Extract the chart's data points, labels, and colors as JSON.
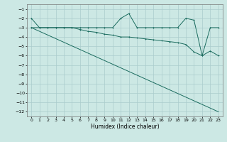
{
  "xlabel": "Humidex (Indice chaleur)",
  "ylabel": "",
  "xlim": [
    -0.5,
    23.5
  ],
  "ylim": [
    -12.5,
    -0.5
  ],
  "yticks": [
    -12,
    -11,
    -10,
    -9,
    -8,
    -7,
    -6,
    -5,
    -4,
    -3,
    -2,
    -1
  ],
  "xticks": [
    0,
    1,
    2,
    3,
    4,
    5,
    6,
    7,
    8,
    9,
    10,
    11,
    12,
    13,
    14,
    15,
    16,
    17,
    18,
    19,
    20,
    21,
    22,
    23
  ],
  "bg_color": "#cce8e4",
  "grid_color": "#aacccc",
  "line_color": "#1a6b5e",
  "line1_x": [
    0,
    1,
    2,
    3,
    4,
    5,
    6,
    7,
    8,
    9,
    10,
    11,
    12,
    13,
    14,
    15,
    16,
    17,
    18,
    19,
    20,
    21,
    22,
    23
  ],
  "line1_y": [
    -2,
    -3,
    -3,
    -3,
    -3,
    -3,
    -3,
    -3,
    -3,
    -3,
    -3,
    -2,
    -1.5,
    -3,
    -3,
    -3,
    -3,
    -3,
    -3,
    -2,
    -2.2,
    -6,
    -3,
    -3
  ],
  "line2_x": [
    0,
    1,
    2,
    3,
    4,
    5,
    6,
    7,
    8,
    9,
    10,
    11,
    12,
    13,
    14,
    15,
    16,
    17,
    18,
    19,
    20,
    21,
    22,
    23
  ],
  "line2_y": [
    -3,
    -3,
    -3,
    -3,
    -3,
    -3,
    -3.2,
    -3.4,
    -3.5,
    -3.7,
    -3.8,
    -4,
    -4,
    -4.1,
    -4.2,
    -4.3,
    -4.4,
    -4.5,
    -4.6,
    -4.8,
    -5.6,
    -6.0,
    -5.5,
    -6.0
  ],
  "line3_x": [
    0,
    23
  ],
  "line3_y": [
    -3,
    -12
  ]
}
